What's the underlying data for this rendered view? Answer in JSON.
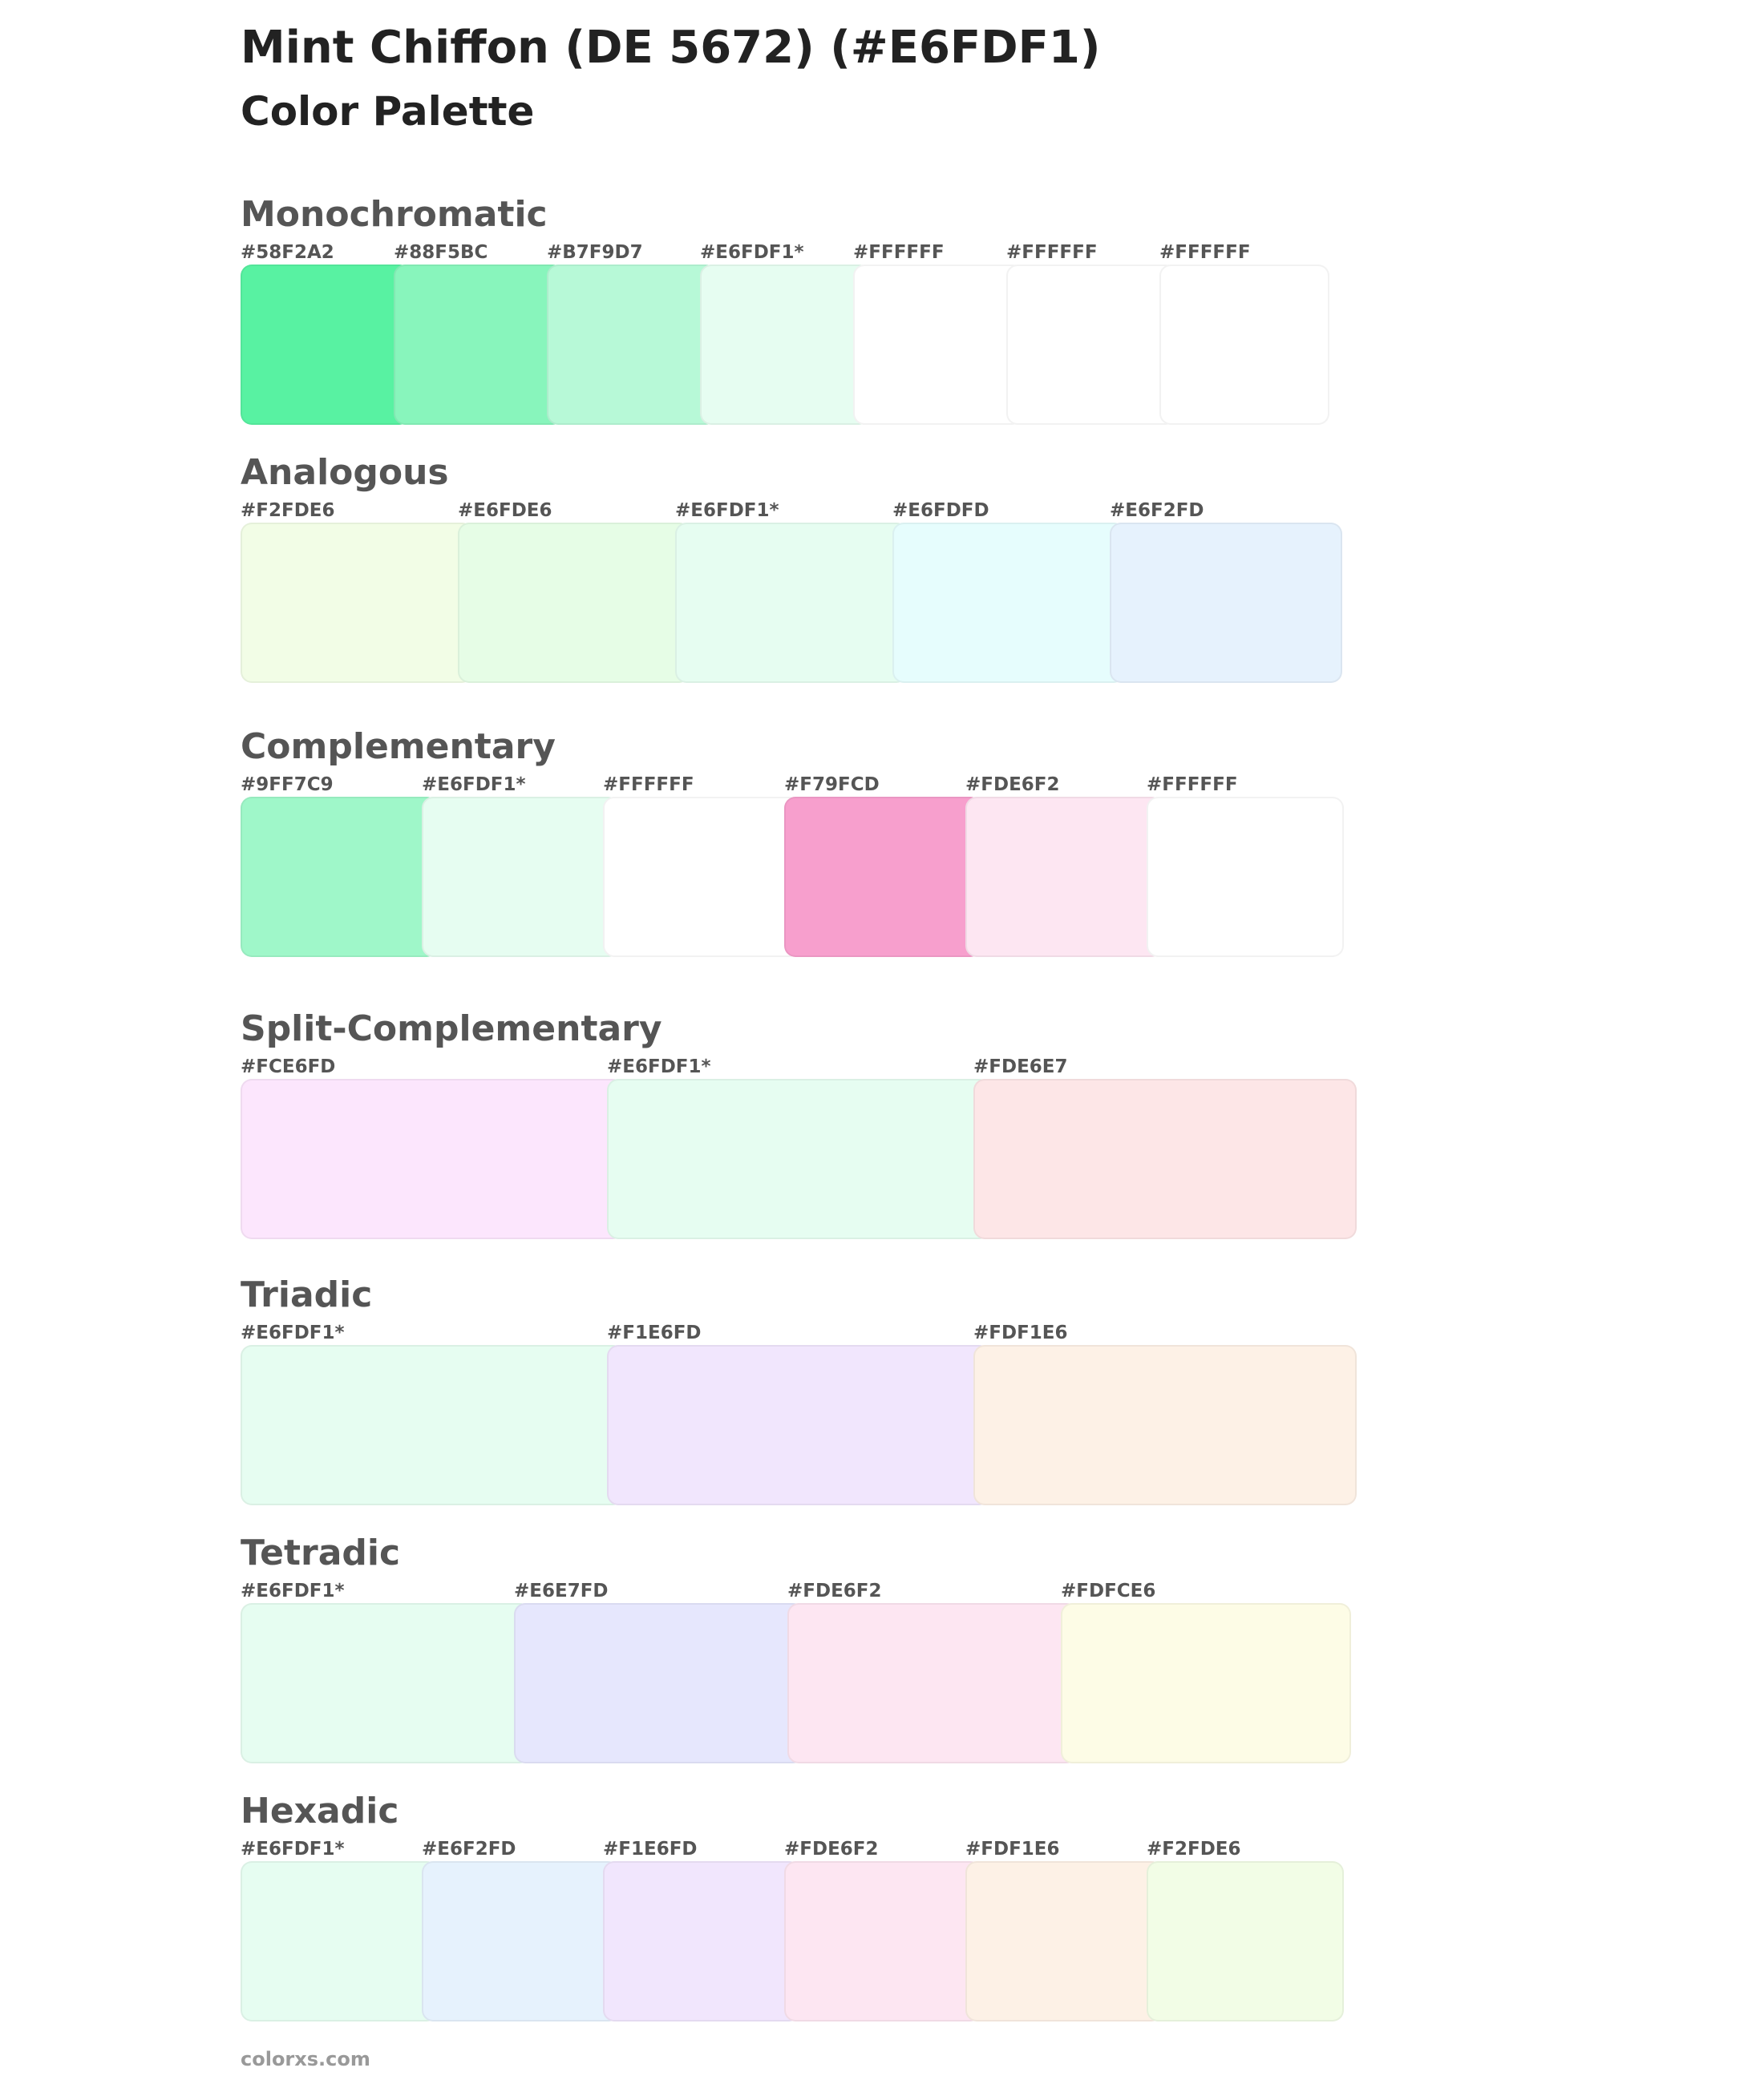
{
  "header": {
    "title": "Mint Chiffon (DE 5672) (#E6FDF1)",
    "subtitle": "Color Palette"
  },
  "palettes": [
    {
      "name": "Monochromatic",
      "colors": [
        {
          "label": "#58F2A2",
          "hex": "#58F2A2"
        },
        {
          "label": "#88F5BC",
          "hex": "#88F5BC"
        },
        {
          "label": "#B7F9D7",
          "hex": "#B7F9D7"
        },
        {
          "label": "#E6FDF1*",
          "hex": "#E6FDF1"
        },
        {
          "label": "#FFFFFF",
          "hex": "#FFFFFF"
        },
        {
          "label": "#FFFFFF",
          "hex": "#FFFFFF"
        },
        {
          "label": "#FFFFFF",
          "hex": "#FFFFFF"
        }
      ]
    },
    {
      "name": "Analogous",
      "colors": [
        {
          "label": "#F2FDE6",
          "hex": "#F2FDE6"
        },
        {
          "label": "#E6FDE6",
          "hex": "#E6FDE6"
        },
        {
          "label": "#E6FDF1*",
          "hex": "#E6FDF1"
        },
        {
          "label": "#E6FDFD",
          "hex": "#E6FDFD"
        },
        {
          "label": "#E6F2FD",
          "hex": "#E6F2FD"
        }
      ]
    },
    {
      "name": "Complementary",
      "colors": [
        {
          "label": "#9FF7C9",
          "hex": "#9FF7C9"
        },
        {
          "label": "#E6FDF1*",
          "hex": "#E6FDF1"
        },
        {
          "label": "#FFFFFF",
          "hex": "#FFFFFF"
        },
        {
          "label": "#F79FCD",
          "hex": "#F79FCD"
        },
        {
          "label": "#FDE6F2",
          "hex": "#FDE6F2"
        },
        {
          "label": "#FFFFFF",
          "hex": "#FFFFFF"
        }
      ]
    },
    {
      "name": "Split-Complementary",
      "colors": [
        {
          "label": "#FCE6FD",
          "hex": "#FCE6FD"
        },
        {
          "label": "#E6FDF1*",
          "hex": "#E6FDF1"
        },
        {
          "label": "#FDE6E7",
          "hex": "#FDE6E7"
        }
      ]
    },
    {
      "name": "Triadic",
      "colors": [
        {
          "label": "#E6FDF1*",
          "hex": "#E6FDF1"
        },
        {
          "label": "#F1E6FD",
          "hex": "#F1E6FD"
        },
        {
          "label": "#FDF1E6",
          "hex": "#FDF1E6"
        }
      ]
    },
    {
      "name": "Tetradic",
      "colors": [
        {
          "label": "#E6FDF1*",
          "hex": "#E6FDF1"
        },
        {
          "label": "#E6E7FD",
          "hex": "#E6E7FD"
        },
        {
          "label": "#FDE6F2",
          "hex": "#FDE6F2"
        },
        {
          "label": "#FDFCE6",
          "hex": "#FDFCE6"
        }
      ]
    },
    {
      "name": "Hexadic",
      "colors": [
        {
          "label": "#E6FDF1*",
          "hex": "#E6FDF1"
        },
        {
          "label": "#E6F2FD",
          "hex": "#E6F2FD"
        },
        {
          "label": "#F1E6FD",
          "hex": "#F1E6FD"
        },
        {
          "label": "#FDE6F2",
          "hex": "#FDE6F2"
        },
        {
          "label": "#FDF1E6",
          "hex": "#FDF1E6"
        },
        {
          "label": "#F2FDE6",
          "hex": "#F2FDE6"
        }
      ]
    }
  ],
  "footer": {
    "text": "colorxs.com"
  }
}
